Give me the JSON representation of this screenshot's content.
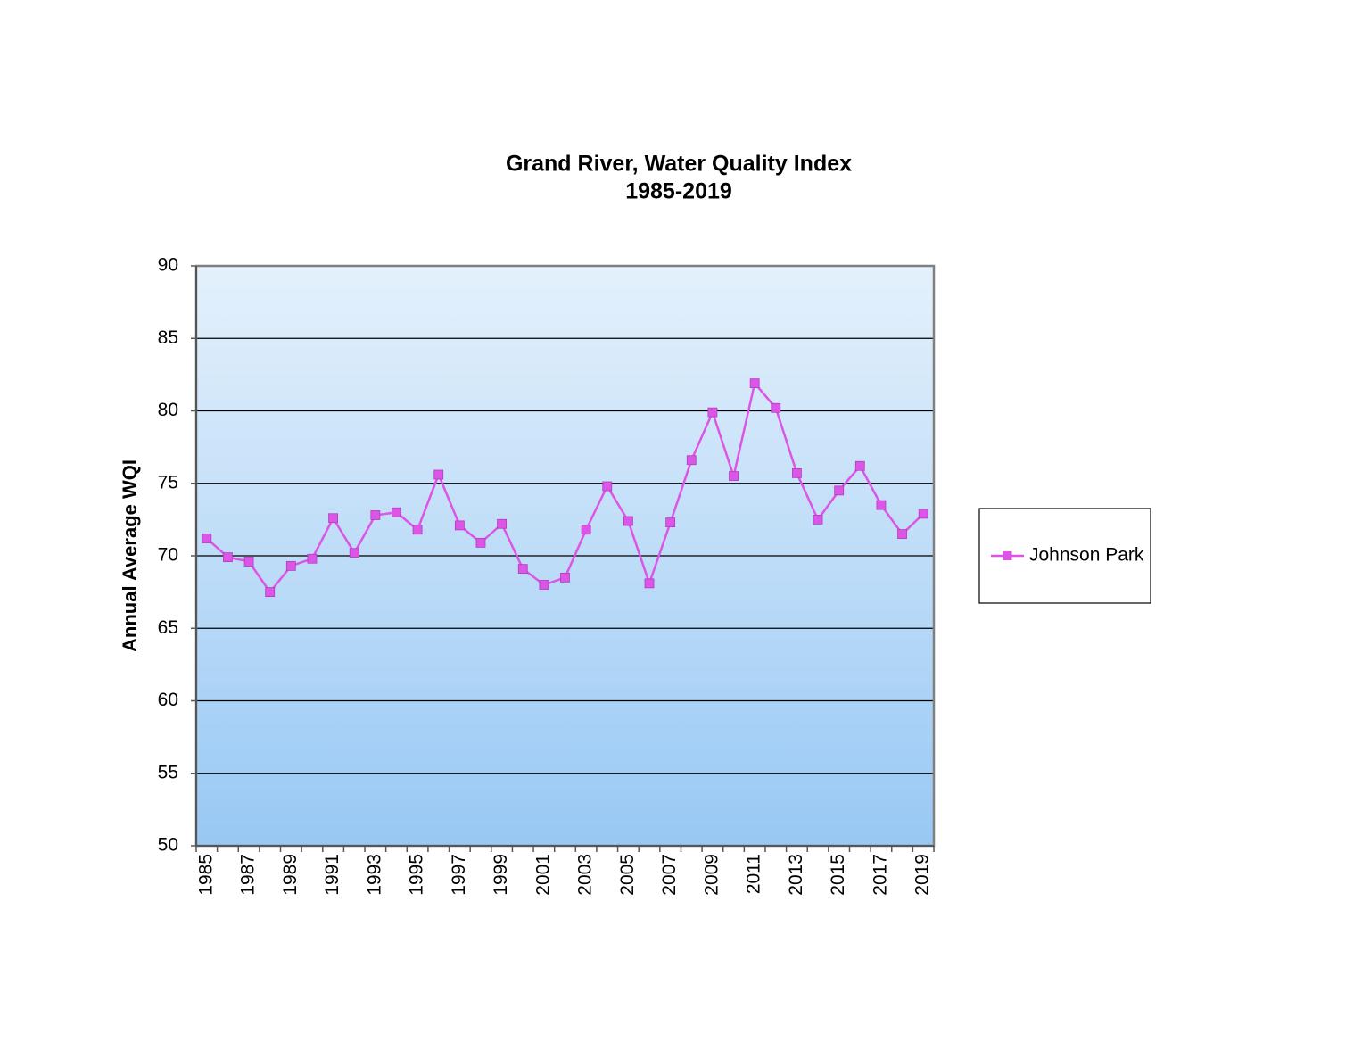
{
  "chart_data": {
    "type": "line",
    "title": "Grand River, Water Quality Index",
    "subtitle": "1985-2019",
    "y_label": "Annual Average WQI",
    "categories": [
      "1985",
      null,
      "1987",
      null,
      "1989",
      null,
      "1991",
      null,
      "1993",
      null,
      "1995",
      null,
      "1997",
      null,
      "1999",
      null,
      "2001",
      null,
      "2003",
      null,
      "2005",
      null,
      "2007",
      null,
      "2009",
      null,
      "2011",
      null,
      "2013",
      null,
      "2015",
      null,
      "2017",
      null,
      "2019"
    ],
    "series": [
      {
        "name": "Johnson Park",
        "color": "#dd55e6",
        "values": [
          71.2,
          69.9,
          69.6,
          67.5,
          69.3,
          69.8,
          72.6,
          70.2,
          72.8,
          73.0,
          71.8,
          75.6,
          72.1,
          70.9,
          72.2,
          69.1,
          68.0,
          68.5,
          71.8,
          74.8,
          72.4,
          68.1,
          72.3,
          76.6,
          79.9,
          75.5,
          81.9,
          80.2,
          75.7,
          72.5,
          74.5,
          76.2,
          73.5,
          71.5,
          72.9
        ]
      }
    ],
    "ylim": [
      50,
      90
    ],
    "yticks": [
      50,
      55,
      60,
      65,
      70,
      75,
      80,
      85,
      90
    ],
    "grid": true,
    "legend": "right",
    "background": [
      "#e4f1fc",
      "#98c8f4"
    ]
  }
}
